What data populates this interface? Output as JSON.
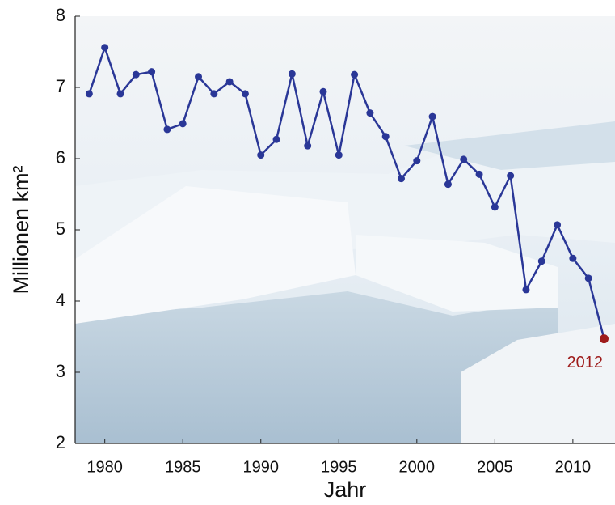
{
  "chart_data": {
    "type": "line",
    "x_label": "Jahr",
    "y_label": "Millionen km²",
    "x": [
      1979,
      1980,
      1981,
      1982,
      1983,
      1984,
      1985,
      1986,
      1987,
      1988,
      1989,
      1990,
      1991,
      1992,
      1993,
      1994,
      1995,
      1996,
      1997,
      1998,
      1999,
      2000,
      2001,
      2002,
      2003,
      2004,
      2005,
      2006,
      2007,
      2008,
      2009,
      2010,
      2011,
      2012
    ],
    "series": [
      {
        "color": "#2a3797",
        "values": [
          6.91,
          7.56,
          6.91,
          7.18,
          7.22,
          6.41,
          6.49,
          7.15,
          6.91,
          7.08,
          6.91,
          6.05,
          6.27,
          7.19,
          6.18,
          6.94,
          6.05,
          7.18,
          6.64,
          6.31,
          5.72,
          5.97,
          6.59,
          5.64,
          5.99,
          5.78,
          5.32,
          5.76,
          4.16,
          4.56,
          5.07,
          4.6,
          4.32,
          3.47
        ]
      }
    ],
    "highlight_color": "#9e1b1b",
    "xlim": [
      1978.1,
      2012.7
    ],
    "xticks": [
      1980,
      1985,
      1990,
      1995,
      2000,
      2005,
      2010
    ],
    "ylim": [
      2,
      8
    ],
    "yticks": [
      2,
      3,
      4,
      5,
      6,
      7,
      8
    ]
  }
}
